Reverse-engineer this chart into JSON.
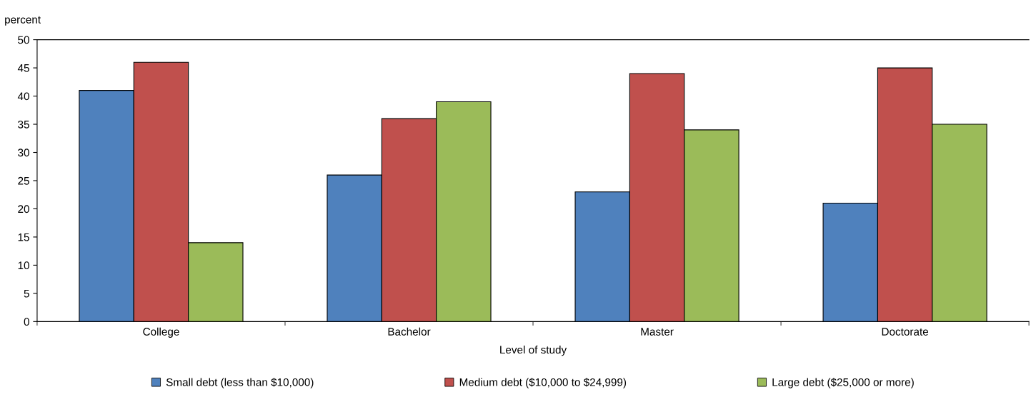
{
  "chart_data": {
    "type": "bar",
    "ylabel": "percent",
    "xlabel": "Level of study",
    "categories": [
      "College",
      "Bachelor",
      "Master",
      "Doctorate"
    ],
    "series": [
      {
        "name": "Small debt (less than $10,000)",
        "color": "#4f81bd",
        "values": [
          41,
          26,
          23,
          21
        ]
      },
      {
        "name": "Medium debt ($10,000 to $24,999)",
        "color": "#c0504d",
        "values": [
          46,
          36,
          44,
          45
        ]
      },
      {
        "name": "Large debt ($25,000 or more)",
        "color": "#9bbb59",
        "values": [
          14,
          39,
          34,
          35
        ]
      }
    ],
    "ylim": [
      0,
      50
    ],
    "yticks": [
      0,
      5,
      10,
      15,
      20,
      25,
      30,
      35,
      40,
      45,
      50
    ],
    "grid": false,
    "legend": "bottom"
  }
}
